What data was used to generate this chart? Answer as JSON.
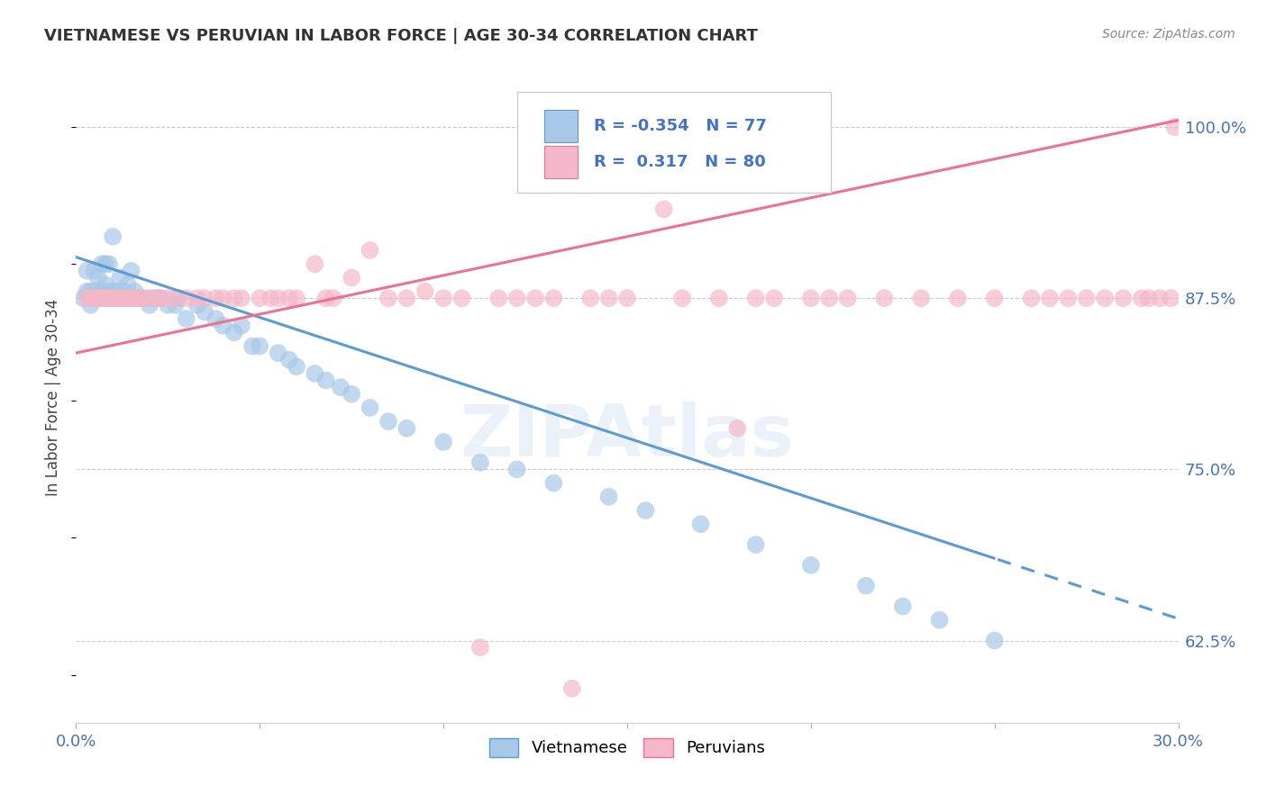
{
  "title": "VIETNAMESE VS PERUVIAN IN LABOR FORCE | AGE 30-34 CORRELATION CHART",
  "source": "Source: ZipAtlas.com",
  "ylabel": "In Labor Force | Age 30-34",
  "ytick_labels": [
    "62.5%",
    "75.0%",
    "87.5%",
    "100.0%"
  ],
  "ytick_values": [
    0.625,
    0.75,
    0.875,
    1.0
  ],
  "xlim": [
    0.0,
    0.3
  ],
  "ylim": [
    0.565,
    1.04
  ],
  "legend_R_viet": "-0.354",
  "legend_N_viet": "77",
  "legend_R_peru": "0.317",
  "legend_N_peru": "80",
  "color_viet": "#A8C8E8",
  "color_peru": "#F4B8C8",
  "color_viet_line": "#5B9BD5",
  "color_peru_line": "#F07090",
  "watermark": "ZIPAtlas",
  "viet_scatter_x": [
    0.002,
    0.003,
    0.003,
    0.004,
    0.004,
    0.005,
    0.005,
    0.005,
    0.005,
    0.006,
    0.006,
    0.007,
    0.007,
    0.007,
    0.008,
    0.008,
    0.008,
    0.009,
    0.009,
    0.009,
    0.01,
    0.01,
    0.01,
    0.011,
    0.011,
    0.012,
    0.012,
    0.013,
    0.013,
    0.014,
    0.014,
    0.015,
    0.015,
    0.016,
    0.016,
    0.017,
    0.018,
    0.019,
    0.02,
    0.021,
    0.022,
    0.023,
    0.025,
    0.027,
    0.028,
    0.03,
    0.033,
    0.035,
    0.038,
    0.04,
    0.043,
    0.045,
    0.048,
    0.05,
    0.055,
    0.058,
    0.06,
    0.065,
    0.068,
    0.072,
    0.075,
    0.08,
    0.085,
    0.09,
    0.1,
    0.11,
    0.12,
    0.13,
    0.145,
    0.155,
    0.17,
    0.185,
    0.2,
    0.215,
    0.225,
    0.235,
    0.25
  ],
  "viet_scatter_y": [
    0.875,
    0.88,
    0.895,
    0.87,
    0.88,
    0.875,
    0.88,
    0.895,
    0.875,
    0.89,
    0.875,
    0.875,
    0.88,
    0.9,
    0.875,
    0.885,
    0.9,
    0.875,
    0.88,
    0.9,
    0.875,
    0.88,
    0.92,
    0.88,
    0.875,
    0.875,
    0.89,
    0.875,
    0.88,
    0.875,
    0.885,
    0.875,
    0.895,
    0.875,
    0.88,
    0.875,
    0.875,
    0.875,
    0.87,
    0.875,
    0.875,
    0.875,
    0.87,
    0.87,
    0.875,
    0.86,
    0.87,
    0.865,
    0.86,
    0.855,
    0.85,
    0.855,
    0.84,
    0.84,
    0.835,
    0.83,
    0.825,
    0.82,
    0.815,
    0.81,
    0.805,
    0.795,
    0.785,
    0.78,
    0.77,
    0.755,
    0.75,
    0.74,
    0.73,
    0.72,
    0.71,
    0.695,
    0.68,
    0.665,
    0.65,
    0.64,
    0.625
  ],
  "peru_scatter_x": [
    0.003,
    0.004,
    0.005,
    0.005,
    0.006,
    0.007,
    0.007,
    0.008,
    0.009,
    0.009,
    0.01,
    0.011,
    0.012,
    0.013,
    0.014,
    0.015,
    0.016,
    0.017,
    0.018,
    0.02,
    0.022,
    0.023,
    0.025,
    0.027,
    0.03,
    0.033,
    0.035,
    0.038,
    0.04,
    0.043,
    0.045,
    0.05,
    0.053,
    0.055,
    0.058,
    0.06,
    0.065,
    0.068,
    0.07,
    0.075,
    0.08,
    0.085,
    0.09,
    0.095,
    0.1,
    0.105,
    0.11,
    0.115,
    0.12,
    0.125,
    0.13,
    0.135,
    0.14,
    0.145,
    0.15,
    0.16,
    0.165,
    0.17,
    0.175,
    0.18,
    0.185,
    0.19,
    0.2,
    0.205,
    0.21,
    0.22,
    0.23,
    0.24,
    0.25,
    0.26,
    0.265,
    0.27,
    0.275,
    0.28,
    0.285,
    0.29,
    0.292,
    0.295,
    0.298,
    0.299
  ],
  "peru_scatter_y": [
    0.875,
    0.875,
    0.875,
    0.875,
    0.875,
    0.875,
    0.875,
    0.875,
    0.875,
    0.875,
    0.875,
    0.875,
    0.875,
    0.875,
    0.875,
    0.875,
    0.875,
    0.875,
    0.875,
    0.875,
    0.875,
    0.875,
    0.875,
    0.875,
    0.875,
    0.875,
    0.875,
    0.875,
    0.875,
    0.875,
    0.875,
    0.875,
    0.875,
    0.875,
    0.875,
    0.875,
    0.9,
    0.875,
    0.875,
    0.89,
    0.91,
    0.875,
    0.875,
    0.88,
    0.875,
    0.875,
    0.62,
    0.875,
    0.875,
    0.875,
    0.875,
    0.59,
    0.875,
    0.875,
    0.875,
    0.94,
    0.875,
    0.96,
    0.875,
    0.78,
    0.875,
    0.875,
    0.875,
    0.875,
    0.875,
    0.875,
    0.875,
    0.875,
    0.875,
    0.875,
    0.875,
    0.875,
    0.875,
    0.875,
    0.875,
    0.875,
    0.875,
    0.875,
    0.875,
    1.0
  ]
}
